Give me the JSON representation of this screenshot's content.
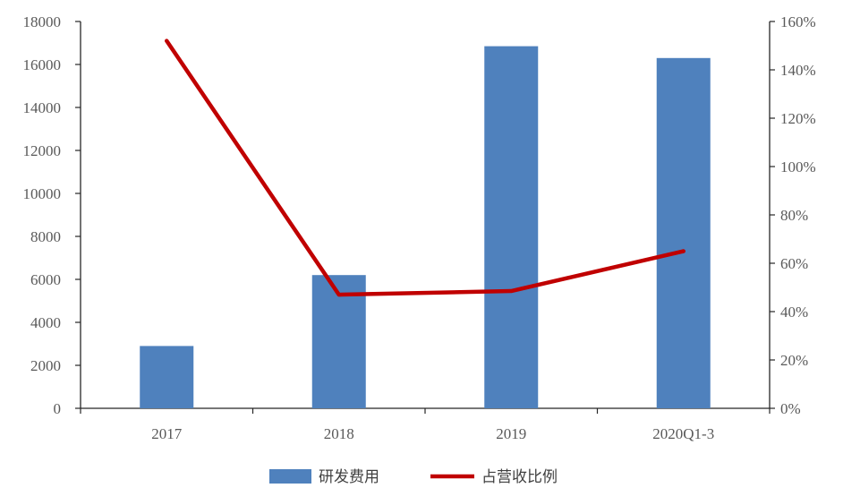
{
  "chart_data": {
    "type": "bar",
    "categories": [
      "2017",
      "2018",
      "2019",
      "2020Q1-3"
    ],
    "series": [
      {
        "name": "研发费用",
        "type": "bar",
        "axis": "left",
        "color": "#4F81BD",
        "values": [
          2900,
          6200,
          16850,
          16300
        ]
      },
      {
        "name": "占营收比例",
        "type": "line",
        "axis": "right",
        "color": "#C00000",
        "values": [
          1.52,
          0.47,
          0.485,
          0.65
        ]
      }
    ],
    "y_left": {
      "min": 0,
      "max": 18000,
      "step": 2000,
      "tick_labels": [
        "0",
        "2000",
        "4000",
        "6000",
        "8000",
        "10000",
        "12000",
        "14000",
        "16000",
        "18000"
      ]
    },
    "y_right": {
      "min": 0,
      "max": 1.6,
      "step": 0.2,
      "tick_labels": [
        "0%",
        "20%",
        "40%",
        "60%",
        "80%",
        "100%",
        "120%",
        "140%",
        "160%"
      ]
    },
    "grid": false,
    "legend_position": "bottom",
    "title": "",
    "xlabel": "",
    "ylabel": ""
  }
}
